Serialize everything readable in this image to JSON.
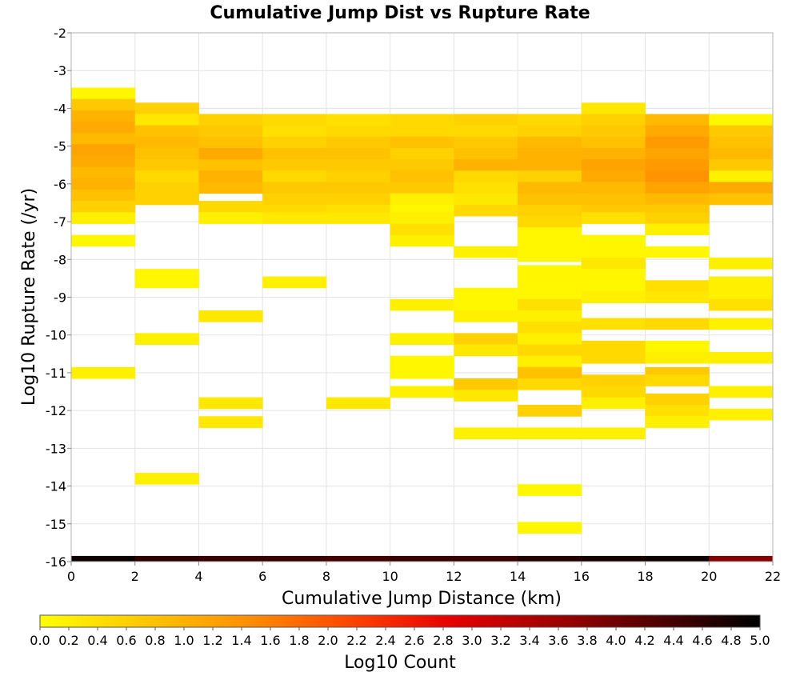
{
  "chart_data": {
    "type": "heatmap",
    "title": "Cumulative Jump Dist vs Rupture Rate",
    "xlabel": "Cumulative Jump Distance (km)",
    "ylabel": "Log10 Rupture Rate (/yr)",
    "xlim": [
      0,
      22
    ],
    "ylim": [
      -16,
      -2
    ],
    "x_ticks": [
      "0",
      "2",
      "4",
      "6",
      "8",
      "10",
      "12",
      "14",
      "16",
      "18",
      "20",
      "22"
    ],
    "y_ticks": [
      "-2",
      "-3",
      "-4",
      "-5",
      "-6",
      "-7",
      "-8",
      "-9",
      "-10",
      "-11",
      "-12",
      "-13",
      "-14",
      "-15",
      "-16"
    ],
    "x_bin_width": 2,
    "y_bin_height": 0.3,
    "grid": true,
    "colorbar": {
      "label": "Log10 Count",
      "min": 0.0,
      "max": 5.0,
      "ticks": [
        "0.0",
        "0.2",
        "0.4",
        "0.6",
        "0.8",
        "1.0",
        "1.2",
        "1.4",
        "1.6",
        "1.8",
        "2.0",
        "2.2",
        "2.4",
        "2.6",
        "2.8",
        "3.0",
        "3.2",
        "3.4",
        "3.6",
        "3.8",
        "4.0",
        "4.2",
        "4.4",
        "4.6",
        "4.8",
        "5.0"
      ],
      "colors": [
        "#ffff00",
        "#ffc800",
        "#ff9100",
        "#ff4600",
        "#e60000",
        "#a00000",
        "#500000",
        "#000000"
      ],
      "placement": "bottom"
    },
    "columns": [
      {
        "x0": 0,
        "cells": [
          [
            -3.6,
            0.1
          ],
          [
            -3.9,
            0.7
          ],
          [
            -4.2,
            1.0
          ],
          [
            -4.5,
            1.1
          ],
          [
            -4.8,
            0.9
          ],
          [
            -5.1,
            1.2
          ],
          [
            -5.4,
            1.1
          ],
          [
            -5.7,
            0.9
          ],
          [
            -6.0,
            1.0
          ],
          [
            -6.3,
            0.8
          ],
          [
            -6.6,
            0.6
          ],
          [
            -6.9,
            0.2
          ],
          [
            -7.5,
            0.1
          ],
          [
            -11.0,
            0.2
          ],
          [
            -16.0,
            4.9
          ]
        ]
      },
      {
        "x0": 2,
        "cells": [
          [
            -4.0,
            0.6
          ],
          [
            -4.3,
            0.3
          ],
          [
            -4.6,
            0.8
          ],
          [
            -4.9,
            0.9
          ],
          [
            -5.2,
            0.8
          ],
          [
            -5.5,
            0.7
          ],
          [
            -5.8,
            0.5
          ],
          [
            -6.1,
            0.6
          ],
          [
            -6.4,
            0.6
          ],
          [
            -8.4,
            0.1
          ],
          [
            -8.6,
            0.1
          ],
          [
            -10.1,
            0.2
          ],
          [
            -13.8,
            0.2
          ],
          [
            -16.0,
            4.6
          ]
        ]
      },
      {
        "x0": 4,
        "cells": [
          [
            -4.3,
            0.6
          ],
          [
            -4.6,
            0.7
          ],
          [
            -4.9,
            0.8
          ],
          [
            -5.2,
            1.1
          ],
          [
            -5.5,
            0.8
          ],
          [
            -5.8,
            1.0
          ],
          [
            -6.1,
            0.9
          ],
          [
            -6.6,
            0.5
          ],
          [
            -6.9,
            0.2
          ],
          [
            -9.5,
            0.3
          ],
          [
            -11.8,
            0.3
          ],
          [
            -12.3,
            0.3
          ],
          [
            -16.0,
            4.5
          ]
        ]
      },
      {
        "x0": 6,
        "cells": [
          [
            -4.3,
            0.5
          ],
          [
            -4.6,
            0.4
          ],
          [
            -4.9,
            0.6
          ],
          [
            -5.2,
            0.8
          ],
          [
            -5.5,
            0.7
          ],
          [
            -5.8,
            0.5
          ],
          [
            -6.1,
            0.7
          ],
          [
            -6.4,
            0.6
          ],
          [
            -6.7,
            0.5
          ],
          [
            -6.9,
            0.3
          ],
          [
            -8.6,
            0.2
          ],
          [
            -16.0,
            4.5
          ]
        ]
      },
      {
        "x0": 8,
        "cells": [
          [
            -4.3,
            0.4
          ],
          [
            -4.6,
            0.5
          ],
          [
            -4.9,
            0.7
          ],
          [
            -5.2,
            0.8
          ],
          [
            -5.5,
            0.7
          ],
          [
            -5.8,
            0.6
          ],
          [
            -6.1,
            0.7
          ],
          [
            -6.4,
            0.6
          ],
          [
            -6.7,
            0.4
          ],
          [
            -6.9,
            0.3
          ],
          [
            -11.8,
            0.3
          ],
          [
            -16.0,
            4.4
          ]
        ]
      },
      {
        "x0": 10,
        "cells": [
          [
            -4.3,
            0.5
          ],
          [
            -4.6,
            0.5
          ],
          [
            -4.9,
            0.8
          ],
          [
            -5.2,
            0.6
          ],
          [
            -5.5,
            0.7
          ],
          [
            -5.8,
            0.8
          ],
          [
            -6.1,
            0.7
          ],
          [
            -6.4,
            0.2
          ],
          [
            -6.7,
            0.1
          ],
          [
            -6.9,
            0.2
          ],
          [
            -7.2,
            0.4
          ],
          [
            -7.5,
            0.2
          ],
          [
            -9.2,
            0.2
          ],
          [
            -10.1,
            0.2
          ],
          [
            -10.7,
            0.1
          ],
          [
            -11.0,
            0.1
          ],
          [
            -11.5,
            0.2
          ],
          [
            -16.0,
            4.5
          ]
        ]
      },
      {
        "x0": 12,
        "cells": [
          [
            -4.3,
            0.6
          ],
          [
            -4.6,
            0.5
          ],
          [
            -4.9,
            0.7
          ],
          [
            -5.2,
            0.8
          ],
          [
            -5.5,
            1.0
          ],
          [
            -5.8,
            0.5
          ],
          [
            -6.1,
            0.4
          ],
          [
            -6.4,
            0.3
          ],
          [
            -6.7,
            0.5
          ],
          [
            -7.8,
            0.2
          ],
          [
            -8.9,
            0.1
          ],
          [
            -9.2,
            0.1
          ],
          [
            -9.5,
            0.2
          ],
          [
            -10.1,
            0.6
          ],
          [
            -10.4,
            0.3
          ],
          [
            -11.3,
            0.7
          ],
          [
            -11.6,
            0.3
          ],
          [
            -12.6,
            0.2
          ],
          [
            -16.0,
            4.5
          ]
        ]
      },
      {
        "x0": 14,
        "cells": [
          [
            -4.3,
            0.5
          ],
          [
            -4.6,
            0.6
          ],
          [
            -4.9,
            0.9
          ],
          [
            -5.2,
            1.0
          ],
          [
            -5.5,
            1.0
          ],
          [
            -5.8,
            0.6
          ],
          [
            -6.1,
            0.9
          ],
          [
            -6.4,
            0.8
          ],
          [
            -6.7,
            0.6
          ],
          [
            -7.0,
            0.5
          ],
          [
            -7.3,
            0.1
          ],
          [
            -7.6,
            0.1
          ],
          [
            -7.9,
            0.1
          ],
          [
            -8.3,
            0.1
          ],
          [
            -8.6,
            0.1
          ],
          [
            -8.9,
            0.1
          ],
          [
            -9.2,
            0.4
          ],
          [
            -9.5,
            0.2
          ],
          [
            -9.8,
            0.4
          ],
          [
            -10.1,
            0.2
          ],
          [
            -10.4,
            0.5
          ],
          [
            -10.7,
            0.2
          ],
          [
            -11.0,
            0.8
          ],
          [
            -11.3,
            0.5
          ],
          [
            -12.0,
            0.6
          ],
          [
            -12.6,
            0.2
          ],
          [
            -14.1,
            0.1
          ],
          [
            -15.1,
            0.1
          ],
          [
            -16.0,
            4.7
          ]
        ]
      },
      {
        "x0": 16,
        "cells": [
          [
            -4.0,
            0.3
          ],
          [
            -4.3,
            0.6
          ],
          [
            -4.6,
            0.7
          ],
          [
            -4.9,
            0.8
          ],
          [
            -5.2,
            1.0
          ],
          [
            -5.5,
            1.2
          ],
          [
            -5.8,
            1.1
          ],
          [
            -6.1,
            0.9
          ],
          [
            -6.4,
            0.8
          ],
          [
            -6.7,
            0.7
          ],
          [
            -6.9,
            0.4
          ],
          [
            -7.5,
            0.1
          ],
          [
            -7.8,
            0.1
          ],
          [
            -8.1,
            0.3
          ],
          [
            -8.4,
            0.1
          ],
          [
            -8.7,
            0.1
          ],
          [
            -9.0,
            0.2
          ],
          [
            -9.7,
            0.4
          ],
          [
            -10.3,
            0.5
          ],
          [
            -10.6,
            0.5
          ],
          [
            -11.2,
            0.6
          ],
          [
            -11.5,
            0.5
          ],
          [
            -11.8,
            0.2
          ],
          [
            -12.6,
            0.2
          ],
          [
            -16.0,
            4.8
          ]
        ]
      },
      {
        "x0": 18,
        "cells": [
          [
            -4.3,
            0.9
          ],
          [
            -4.6,
            1.1
          ],
          [
            -4.9,
            1.3
          ],
          [
            -5.2,
            1.2
          ],
          [
            -5.5,
            1.3
          ],
          [
            -5.8,
            1.4
          ],
          [
            -6.1,
            1.2
          ],
          [
            -6.4,
            0.9
          ],
          [
            -6.7,
            0.7
          ],
          [
            -6.9,
            0.6
          ],
          [
            -7.2,
            0.2
          ],
          [
            -7.8,
            0.1
          ],
          [
            -8.7,
            0.4
          ],
          [
            -9.0,
            0.3
          ],
          [
            -9.7,
            0.5
          ],
          [
            -10.3,
            0.1
          ],
          [
            -10.6,
            0.2
          ],
          [
            -11.0,
            0.7
          ],
          [
            -11.2,
            0.5
          ],
          [
            -11.7,
            0.6
          ],
          [
            -12.0,
            0.4
          ],
          [
            -12.3,
            0.2
          ],
          [
            -16.0,
            4.9
          ]
        ]
      },
      {
        "x0": 20,
        "cells": [
          [
            -4.3,
            0.1
          ],
          [
            -4.6,
            0.7
          ],
          [
            -4.9,
            0.8
          ],
          [
            -5.2,
            0.9
          ],
          [
            -5.5,
            0.7
          ],
          [
            -5.8,
            0.2
          ],
          [
            -6.1,
            1.1
          ],
          [
            -6.4,
            0.8
          ],
          [
            -8.1,
            0.2
          ],
          [
            -8.6,
            0.2
          ],
          [
            -8.9,
            0.2
          ],
          [
            -9.2,
            0.4
          ],
          [
            -9.7,
            0.2
          ],
          [
            -10.6,
            0.2
          ],
          [
            -11.5,
            0.2
          ],
          [
            -12.1,
            0.2
          ],
          [
            -16.0,
            3.8
          ]
        ]
      }
    ]
  }
}
